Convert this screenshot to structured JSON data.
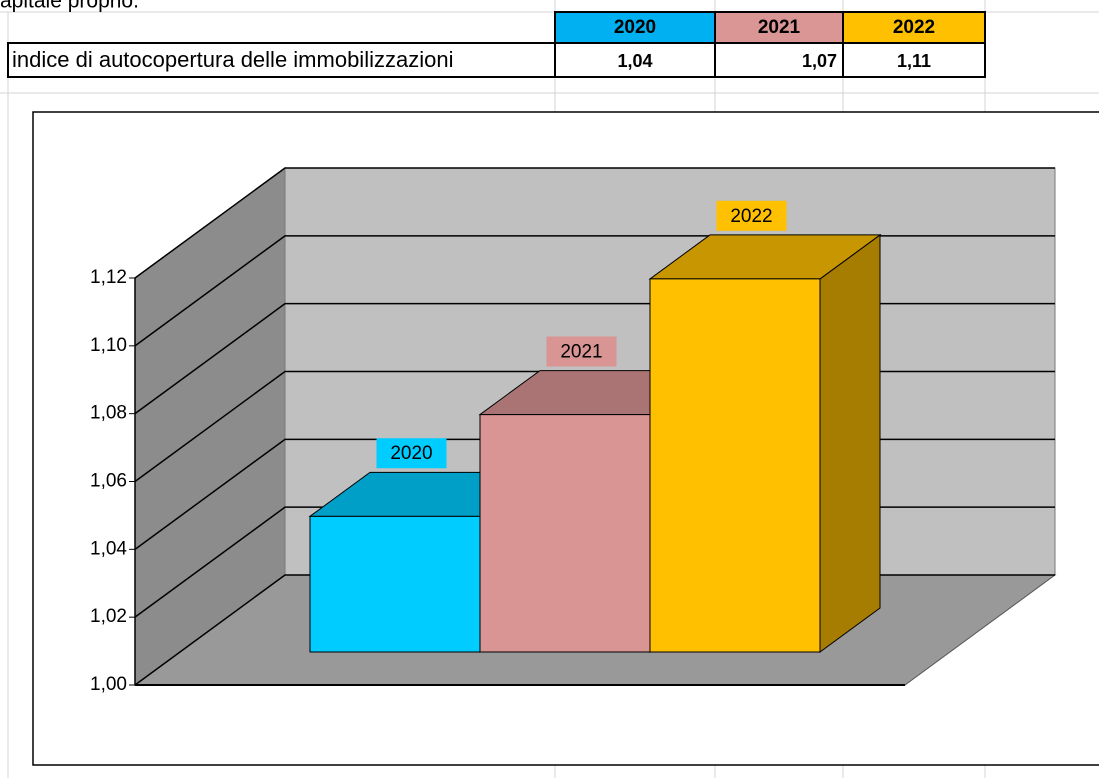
{
  "sheet": {
    "top_text": "apitale proprio."
  },
  "table": {
    "header": [
      "2020",
      "2021",
      "2022"
    ],
    "header_colors": [
      "#00b0f0",
      "#da9694",
      "#ffc000"
    ],
    "rows": [
      [
        "indice di autocopertura delle immobilizzazioni",
        "1,04",
        "1,07",
        "1,11"
      ]
    ]
  },
  "chart_data": {
    "type": "bar3d",
    "categories": [
      "2020",
      "2021",
      "2022"
    ],
    "values": [
      1.04,
      1.07,
      1.11
    ],
    "colors": [
      "#00ccff",
      "#d99594",
      "#ffc000"
    ],
    "ylim": [
      1.0,
      1.12
    ],
    "yticks": [
      {
        "value": 1.0,
        "label": "1,00"
      },
      {
        "value": 1.02,
        "label": "1,02"
      },
      {
        "value": 1.04,
        "label": "1,04"
      },
      {
        "value": 1.06,
        "label": "1,06"
      },
      {
        "value": 1.08,
        "label": "1,08"
      },
      {
        "value": 1.1,
        "label": "1,10"
      },
      {
        "value": 1.12,
        "label": "1,12"
      }
    ],
    "grid": true
  }
}
